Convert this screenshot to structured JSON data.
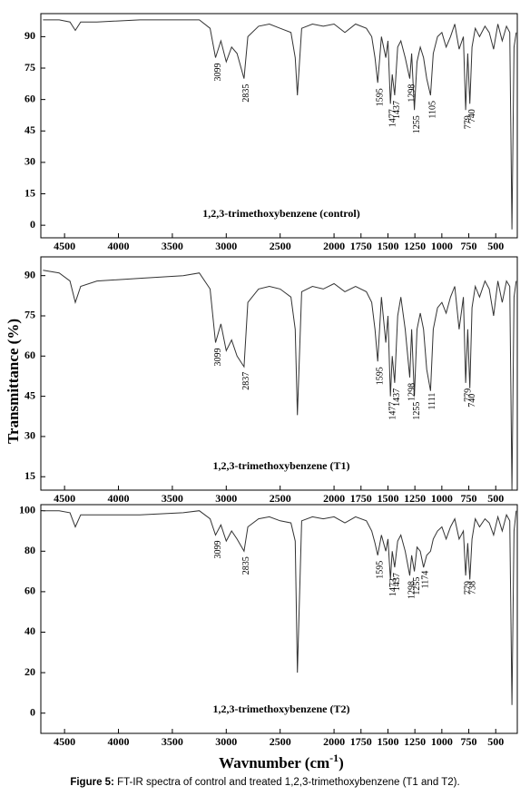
{
  "chart_data": [
    {
      "type": "line",
      "title": "1,2,3-trimethoxybenzene (control)",
      "color": "#333333",
      "x": [
        4700,
        4550,
        4450,
        4400,
        4350,
        4200,
        3800,
        3400,
        3250,
        3150,
        3099,
        3050,
        3000,
        2950,
        2900,
        2835,
        2800,
        2700,
        2600,
        2500,
        2400,
        2360,
        2340,
        2300,
        2200,
        2100,
        2000,
        1900,
        1800,
        1700,
        1650,
        1620,
        1595,
        1560,
        1520,
        1500,
        1477,
        1460,
        1437,
        1410,
        1380,
        1340,
        1298,
        1280,
        1255,
        1230,
        1200,
        1170,
        1140,
        1105,
        1080,
        1040,
        1000,
        960,
        920,
        880,
        840,
        800,
        779,
        760,
        740,
        720,
        690,
        650,
        600,
        560,
        520,
        480,
        440,
        400,
        370,
        350,
        330,
        310
      ],
      "values": [
        98,
        98,
        97,
        93,
        97,
        97,
        98,
        98,
        98,
        94,
        80,
        88,
        78,
        85,
        82,
        70,
        90,
        95,
        96,
        94,
        92,
        80,
        62,
        94,
        96,
        95,
        96,
        92,
        96,
        94,
        90,
        80,
        68,
        90,
        80,
        88,
        58,
        72,
        62,
        85,
        88,
        80,
        70,
        82,
        55,
        78,
        85,
        80,
        70,
        62,
        82,
        90,
        92,
        85,
        90,
        96,
        84,
        90,
        55,
        82,
        58,
        85,
        94,
        90,
        95,
        92,
        84,
        96,
        88,
        95,
        92,
        -2,
        85,
        92
      ],
      "peaks": [
        3099,
        2835,
        1595,
        1477,
        1437,
        1298,
        1255,
        1105,
        779,
        740
      ],
      "xlim": [
        4720,
        300
      ],
      "xticks": [
        4500,
        4000,
        3500,
        3000,
        2500,
        2000,
        1750,
        1500,
        1250,
        1000,
        750,
        500
      ],
      "ylim": [
        -6,
        101
      ],
      "yticks": [
        0,
        15,
        30,
        45,
        60,
        75,
        90
      ]
    },
    {
      "type": "line",
      "title": "1,2,3-trimethoxybenzene (T1)",
      "color": "#333333",
      "x": [
        4700,
        4550,
        4450,
        4400,
        4350,
        4200,
        3800,
        3400,
        3250,
        3150,
        3099,
        3050,
        3000,
        2950,
        2900,
        2835,
        2800,
        2700,
        2600,
        2500,
        2400,
        2360,
        2340,
        2300,
        2200,
        2100,
        2000,
        1900,
        1800,
        1700,
        1650,
        1620,
        1595,
        1560,
        1520,
        1500,
        1477,
        1460,
        1437,
        1410,
        1380,
        1340,
        1298,
        1280,
        1255,
        1230,
        1200,
        1170,
        1140,
        1105,
        1080,
        1040,
        1000,
        960,
        920,
        880,
        840,
        800,
        779,
        760,
        740,
        720,
        690,
        650,
        600,
        560,
        520,
        480,
        440,
        400,
        370,
        350,
        330,
        310
      ],
      "values": [
        92,
        91,
        88,
        80,
        86,
        88,
        89,
        90,
        91,
        85,
        65,
        72,
        62,
        66,
        60,
        56,
        80,
        85,
        86,
        85,
        82,
        70,
        38,
        84,
        86,
        85,
        87,
        84,
        86,
        84,
        80,
        70,
        58,
        82,
        65,
        75,
        45,
        60,
        50,
        75,
        82,
        70,
        52,
        70,
        45,
        70,
        76,
        70,
        55,
        47,
        70,
        78,
        80,
        76,
        82,
        86,
        70,
        82,
        50,
        70,
        48,
        78,
        86,
        82,
        88,
        85,
        75,
        88,
        80,
        88,
        86,
        10,
        82,
        88
      ],
      "peaks": [
        3099,
        2837,
        1595,
        1477,
        1437,
        1298,
        1255,
        1111,
        779,
        740
      ],
      "xlim": [
        4720,
        300
      ],
      "xticks": [
        4500,
        4000,
        3500,
        3000,
        2500,
        2000,
        1750,
        1500,
        1250,
        1000,
        750,
        500
      ],
      "ylim": [
        10,
        97
      ],
      "yticks": [
        15,
        30,
        45,
        60,
        75,
        90
      ]
    },
    {
      "type": "line",
      "title": "1,2,3-trimethoxybenzene (T2)",
      "color": "#333333",
      "x": [
        4700,
        4550,
        4450,
        4400,
        4350,
        4200,
        3800,
        3400,
        3250,
        3150,
        3099,
        3050,
        3000,
        2950,
        2900,
        2835,
        2800,
        2700,
        2600,
        2500,
        2400,
        2360,
        2340,
        2300,
        2200,
        2100,
        2000,
        1900,
        1800,
        1700,
        1650,
        1620,
        1595,
        1560,
        1520,
        1500,
        1477,
        1460,
        1437,
        1410,
        1380,
        1340,
        1298,
        1280,
        1255,
        1230,
        1200,
        1170,
        1140,
        1105,
        1080,
        1040,
        1000,
        960,
        920,
        880,
        840,
        800,
        779,
        760,
        740,
        720,
        690,
        650,
        600,
        560,
        520,
        480,
        440,
        400,
        370,
        350,
        330,
        310
      ],
      "values": [
        100,
        100,
        99,
        92,
        98,
        98,
        98,
        99,
        100,
        96,
        88,
        93,
        85,
        90,
        86,
        80,
        92,
        96,
        97,
        95,
        94,
        85,
        20,
        95,
        97,
        96,
        97,
        94,
        97,
        95,
        90,
        84,
        78,
        88,
        80,
        86,
        66,
        80,
        72,
        85,
        88,
        80,
        68,
        78,
        70,
        82,
        80,
        72,
        78,
        80,
        86,
        90,
        92,
        86,
        92,
        96,
        86,
        90,
        68,
        84,
        66,
        86,
        96,
        92,
        96,
        94,
        88,
        97,
        90,
        98,
        95,
        4,
        90,
        100
      ],
      "peaks": [
        3099,
        2835,
        1595,
        1473,
        1437,
        1298,
        1255,
        1174,
        779,
        738
      ],
      "xlim": [
        4720,
        300
      ],
      "xticks": [
        4500,
        4000,
        3500,
        3000,
        2500,
        2000,
        1750,
        1500,
        1250,
        1000,
        750,
        500
      ],
      "ylim": [
        -10,
        103
      ],
      "yticks": [
        0,
        20,
        40,
        60,
        80,
        100
      ]
    }
  ],
  "y_label": "Transmittance (%)",
  "x_label": [
    "Wavnumber (cm",
    "-1",
    ")"
  ],
  "caption": [
    "Figure 5:",
    " FT-IR spectra of control and treated 1,2,3-trimethoxybenzene (T1 and T2)."
  ]
}
